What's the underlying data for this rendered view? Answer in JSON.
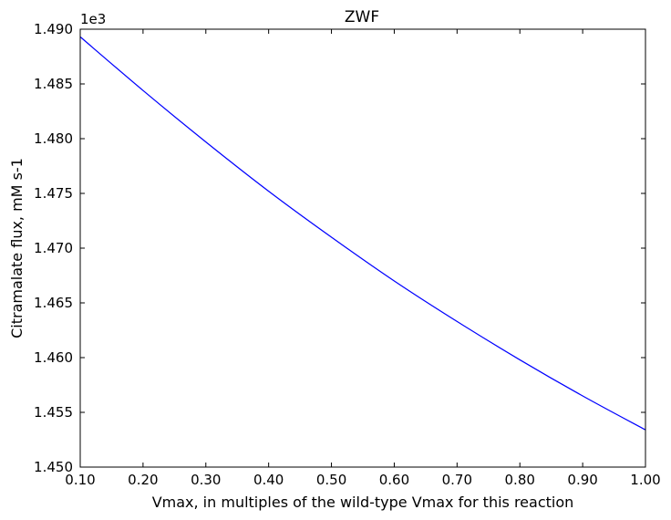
{
  "chart_data": {
    "type": "line",
    "title": "ZWF",
    "xlabel": "Vmax, in multiples of the wild-type Vmax for this reaction",
    "ylabel": "Citramalate flux, mM s-1",
    "y_offset_label": "1e3",
    "xlim": [
      0.1,
      1.0
    ],
    "ylim": [
      1.45,
      1.49
    ],
    "x_ticks": [
      0.1,
      0.2,
      0.3,
      0.4,
      0.5,
      0.6,
      0.7,
      0.8,
      0.9,
      1.0
    ],
    "x_tick_labels": [
      "0.10",
      "0.20",
      "0.30",
      "0.40",
      "0.50",
      "0.60",
      "0.70",
      "0.80",
      "0.90",
      "1.00"
    ],
    "y_ticks": [
      1.45,
      1.455,
      1.46,
      1.465,
      1.47,
      1.475,
      1.48,
      1.485,
      1.49
    ],
    "y_tick_labels": [
      "1.450",
      "1.455",
      "1.460",
      "1.465",
      "1.470",
      "1.475",
      "1.480",
      "1.485",
      "1.490"
    ],
    "grid": false,
    "series": [
      {
        "color": "#0000ff",
        "x": [
          0.1,
          0.2,
          0.3,
          0.4,
          0.5,
          0.6,
          0.7,
          0.8,
          0.9,
          1.0
        ],
        "y": [
          1.4893,
          1.4844,
          1.4797,
          1.4752,
          1.471,
          1.467,
          1.4633,
          1.4598,
          1.4565,
          1.4534
        ]
      }
    ]
  }
}
